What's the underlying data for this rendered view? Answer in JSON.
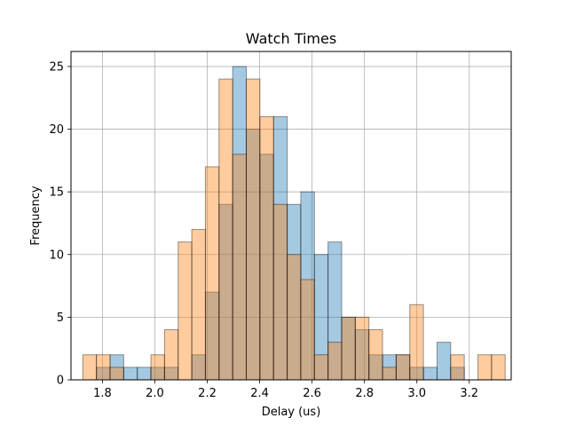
{
  "chart_data": {
    "type": "bar",
    "title": "Watch Times",
    "xlabel": "Delay (us)",
    "ylabel": "Frequency",
    "xlim": [
      1.68,
      3.36
    ],
    "ylim": [
      0,
      26.2
    ],
    "grid": true,
    "x_ticks": [
      "1.8",
      "2.0",
      "2.2",
      "2.4",
      "2.6",
      "2.8",
      "3.0",
      "3.2"
    ],
    "y_ticks": [
      "0",
      "5",
      "10",
      "15",
      "20",
      "25"
    ],
    "bin_width": 0.052,
    "series": [
      {
        "color": "#1f77b4",
        "alpha": 0.4,
        "bin_starts": [
          1.725,
          1.777,
          1.829,
          1.881,
          1.933,
          1.985,
          2.037,
          2.089,
          2.141,
          2.193,
          2.245,
          2.297,
          2.349,
          2.401,
          2.453,
          2.505,
          2.557,
          2.609,
          2.661,
          2.713,
          2.765,
          2.817,
          2.869,
          2.921,
          2.973,
          3.025,
          3.077,
          3.129,
          3.181,
          3.233,
          3.285
        ],
        "values": [
          0,
          1,
          2,
          1,
          1,
          1,
          1,
          0,
          2,
          7,
          14,
          25,
          20,
          18,
          21,
          14,
          15,
          10,
          11,
          5,
          4,
          2,
          2,
          2,
          1,
          1,
          3,
          1,
          0,
          0,
          0
        ]
      },
      {
        "color": "#ff7f0e",
        "alpha": 0.4,
        "bin_starts": [
          1.725,
          1.777,
          1.829,
          1.881,
          1.933,
          1.985,
          2.037,
          2.089,
          2.141,
          2.193,
          2.245,
          2.297,
          2.349,
          2.401,
          2.453,
          2.505,
          2.557,
          2.609,
          2.661,
          2.713,
          2.765,
          2.817,
          2.869,
          2.921,
          2.973,
          3.025,
          3.077,
          3.129,
          3.181,
          3.233,
          3.285
        ],
        "values": [
          2,
          2,
          1,
          0,
          0,
          2,
          4,
          11,
          12,
          17,
          24,
          18,
          24,
          21,
          14,
          10,
          8,
          2,
          3,
          5,
          5,
          4,
          1,
          2,
          6,
          0,
          0,
          2,
          0,
          2,
          2
        ]
      }
    ]
  }
}
